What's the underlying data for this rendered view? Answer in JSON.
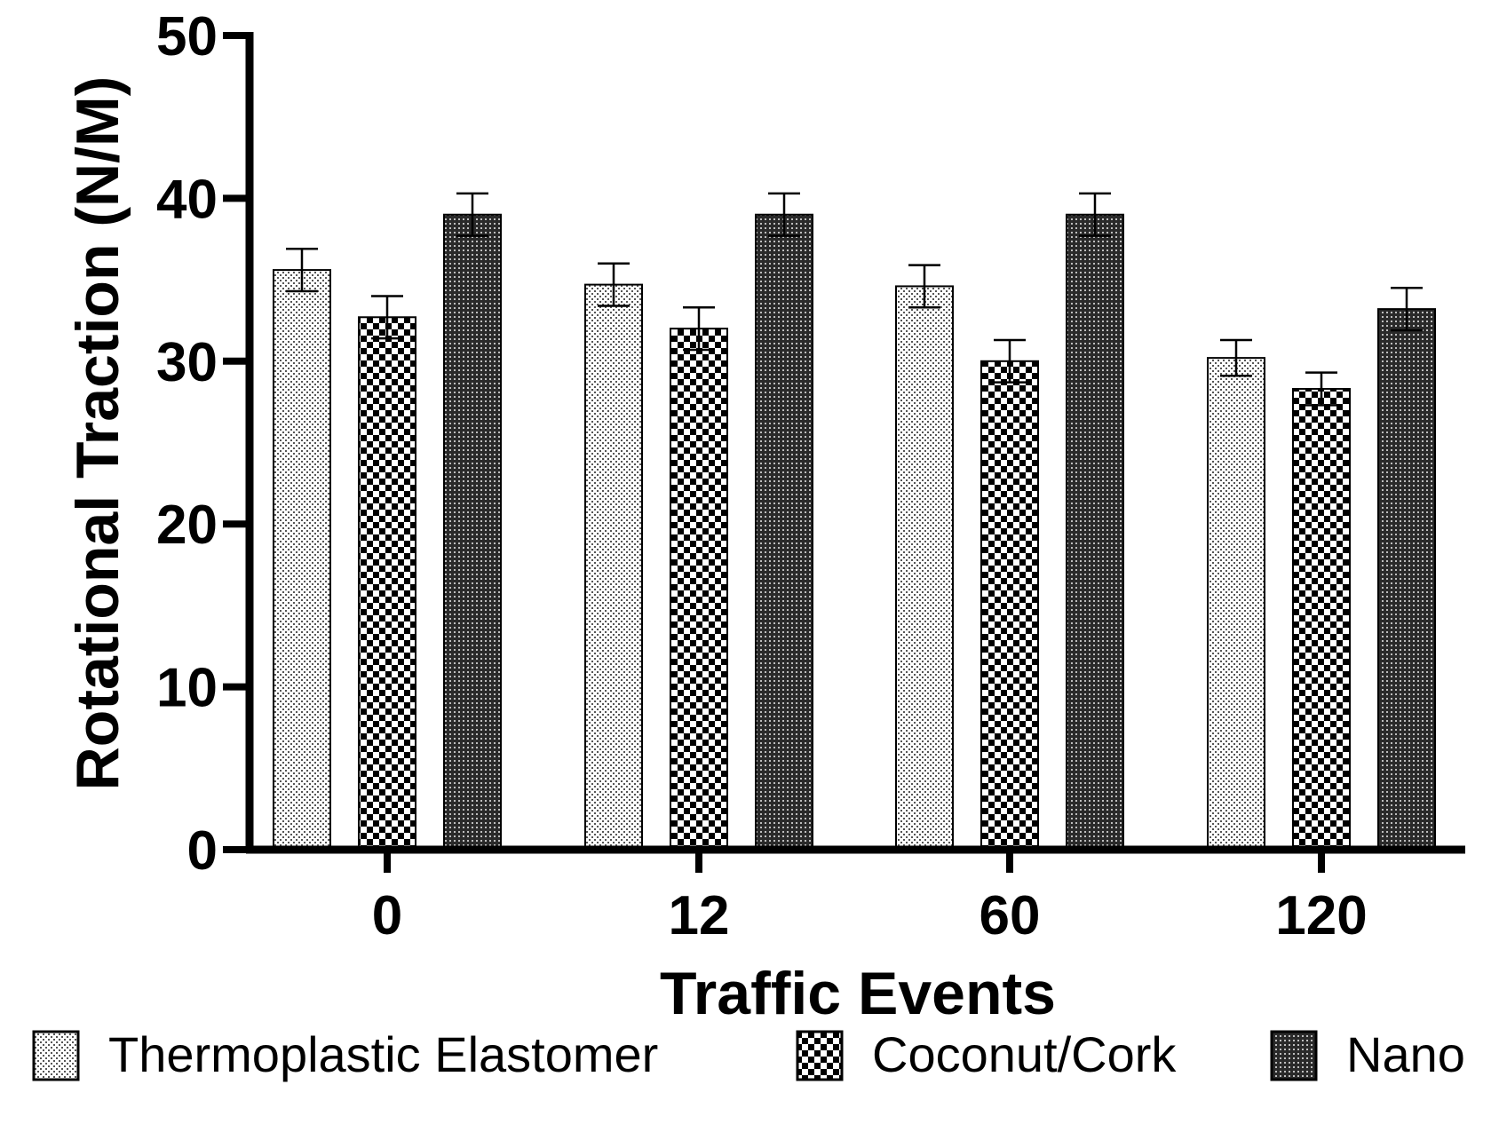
{
  "chart_data": {
    "type": "bar",
    "title": "",
    "xlabel": "Traffic Events",
    "ylabel": "Rotational Traction (N/M)",
    "ylim": [
      0,
      50
    ],
    "yticks": [
      0,
      10,
      20,
      30,
      40,
      50
    ],
    "categories": [
      "0",
      "12",
      "60",
      "120"
    ],
    "error_bars": true,
    "legend_position": "bottom",
    "grid": false,
    "series": [
      {
        "name": "Thermoplastic Elastomer",
        "pattern": "fine-dots",
        "values": [
          35.6,
          34.7,
          34.6,
          30.2
        ],
        "errors": [
          1.3,
          1.3,
          1.3,
          1.1
        ]
      },
      {
        "name": "Coconut/Cork",
        "pattern": "checker",
        "values": [
          32.7,
          32.0,
          30.0,
          28.3
        ],
        "errors": [
          1.3,
          1.3,
          1.3,
          1.0
        ]
      },
      {
        "name": "Nano",
        "pattern": "dense-dots",
        "values": [
          39.0,
          39.0,
          39.0,
          33.2
        ],
        "errors": [
          1.3,
          1.3,
          1.3,
          1.3
        ]
      }
    ]
  }
}
